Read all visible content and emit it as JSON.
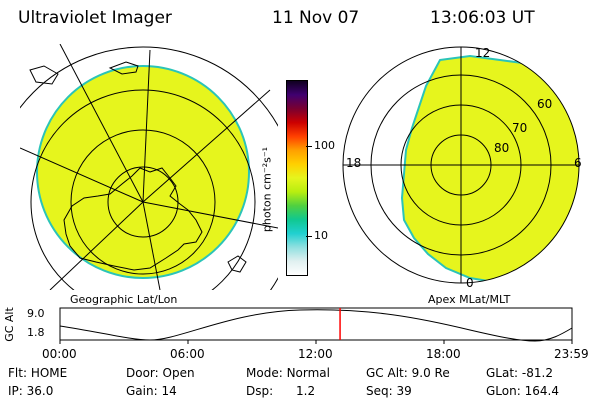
{
  "header": {
    "instrument": "Ultraviolet Imager",
    "date": "11 Nov 07",
    "time": "13:06:03 UT"
  },
  "colors": {
    "aurora_fill": "#e6f51d",
    "edge": "#2bc4b8",
    "alt_marker": "#ff0000"
  },
  "geo_map": {
    "label": "Geographic Lat/Lon"
  },
  "colorbar": {
    "unit_label": "photon cm⁻²s⁻¹",
    "ticks": [
      "100",
      "10"
    ],
    "stops": [
      "#100020",
      "#400070",
      "#7a0030",
      "#cc0000",
      "#ff4000",
      "#ffa000",
      "#ffd000",
      "#e6f51d",
      "#b8ee10",
      "#50d040",
      "#10c890",
      "#20d0d0",
      "#90e0e0",
      "#e0f0f0",
      "#ffffff"
    ]
  },
  "mlt_map": {
    "label": "Apex MLat/MLT",
    "mlt_labels": {
      "top": "12",
      "left": "18",
      "right": "6",
      "bottom": "0"
    },
    "lat_labels": [
      "60",
      "70",
      "80"
    ]
  },
  "alt_panel": {
    "axis_label": "GC Alt",
    "y_ticks": [
      "9.0",
      "1.8"
    ],
    "time_ticks": [
      "00:00",
      "06:00",
      "12:00",
      "18:00",
      "23:59"
    ],
    "current_time_fraction": 0.547
  },
  "status": {
    "filter": {
      "label": "Flt:",
      "value": "HOME"
    },
    "door": {
      "label": "Door:",
      "value": "Open"
    },
    "mode": {
      "label": "Mode:",
      "value": "Normal"
    },
    "gc_alt": {
      "label": "GC Alt:",
      "value": "9.0 Re"
    },
    "glat": {
      "label": "GLat:",
      "value": "-81.2"
    },
    "ip": {
      "label": "IP:",
      "value": "36.0"
    },
    "gain": {
      "label": "Gain:",
      "value": "14"
    },
    "dsp": {
      "label": "Dsp:",
      "value": "1.2"
    },
    "seq": {
      "label": "Seq:",
      "value": "39"
    },
    "glon": {
      "label": "GLon:",
      "value": "164.4"
    }
  }
}
